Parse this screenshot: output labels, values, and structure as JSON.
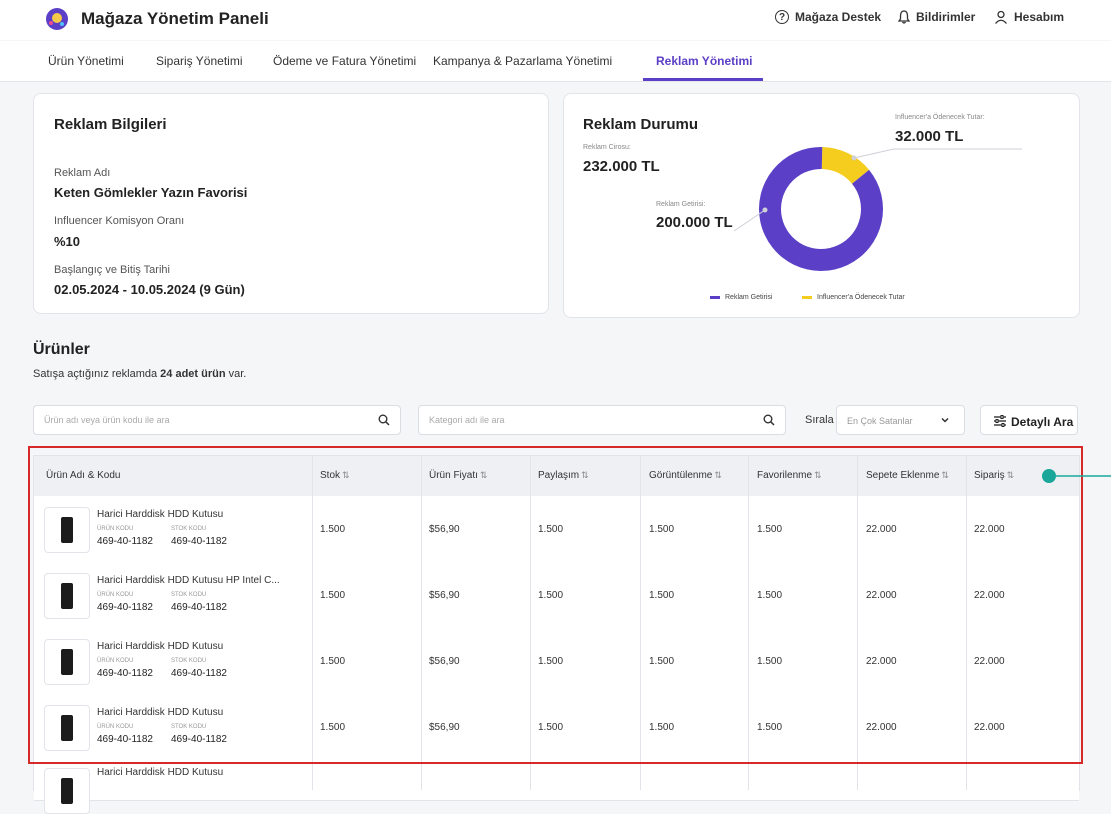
{
  "header": {
    "title": "Mağaza Yönetim Paneli",
    "support": "Mağaza Destek",
    "notifications": "Bildirimler",
    "account": "Hesabım"
  },
  "nav": {
    "tabs": [
      "Ürün Yönetimi",
      "Sipariş Yönetimi",
      "Ödeme ve Fatura Yönetimi",
      "Kampanya & Pazarlama Yönetimi",
      "Reklam Yönetimi"
    ],
    "active": "Reklam Yönetimi"
  },
  "ad_info": {
    "title": "Reklam Bilgileri",
    "name_label": "Reklam Adı",
    "name": "Keten Gömlekler Yazın Favorisi",
    "commission_label": "Influencer Komisyon Oranı",
    "commission": "%10",
    "date_label": "Başlangıç ve Bitiş Tarihi",
    "date": "02.05.2024 - 10.05.2024 (9 Gün)"
  },
  "ad_status": {
    "title": "Reklam Durumu",
    "revenue_label": "Reklam Cirosu:",
    "revenue": "232.000 TL",
    "return_label": "Reklam Getirisi:",
    "return": "200.000 TL",
    "influencer_label": "Influencer'a Ödenecek Tutar:",
    "influencer": "32.000 TL",
    "legend": [
      "Reklam Getirisi",
      "Influencer'a Ödenecek Tutar"
    ],
    "colors": {
      "return": "#5b3fc6",
      "influencer": "#f5cd1f"
    }
  },
  "chart_data": {
    "type": "pie",
    "categories": [
      "Reklam Getirisi",
      "Influencer'a Ödenecek Tutar"
    ],
    "values": [
      200000,
      32000
    ]
  },
  "products": {
    "title": "Ürünler",
    "subtitle_pre": "Satışa açtığınız reklamda ",
    "subtitle_bold": "24 adet ürün",
    "subtitle_post": " var.",
    "search_placeholder": "Ürün adı veya ürün kodu ile ara",
    "category_placeholder": "Kategori adı ile ara",
    "sort_label": "Sırala",
    "sort_value": "En Çok Satanlar",
    "detail_button": "Detaylı Ara",
    "columns": [
      "Ürün Adı & Kodu",
      "Stok",
      "Ürün Fiyatı",
      "Paylaşım",
      "Görüntülenme",
      "Favorilenme",
      "Sepete Eklenme",
      "Sipariş"
    ],
    "code_label": "ÜRÜN KODU",
    "stock_code_label": "STOK KODU",
    "rows": [
      {
        "name": "Harici Harddisk HDD Kutusu",
        "code": "469-40-1182",
        "stock_code": "469-40-1182",
        "stock": "1.500",
        "price": "$56,90",
        "share": "1.500",
        "views": "1.500",
        "favorites": "1.500",
        "cart": "22.000",
        "orders": "22.000"
      },
      {
        "name": "Harici Harddisk HDD Kutusu HP Intel C...",
        "code": "469-40-1182",
        "stock_code": "469-40-1182",
        "stock": "1.500",
        "price": "$56,90",
        "share": "1.500",
        "views": "1.500",
        "favorites": "1.500",
        "cart": "22.000",
        "orders": "22.000"
      },
      {
        "name": "Harici Harddisk HDD Kutusu",
        "code": "469-40-1182",
        "stock_code": "469-40-1182",
        "stock": "1.500",
        "price": "$56,90",
        "share": "1.500",
        "views": "1.500",
        "favorites": "1.500",
        "cart": "22.000",
        "orders": "22.000"
      },
      {
        "name": "Harici Harddisk HDD Kutusu",
        "code": "469-40-1182",
        "stock_code": "469-40-1182",
        "stock": "1.500",
        "price": "$56,90",
        "share": "1.500",
        "views": "1.500",
        "favorites": "1.500",
        "cart": "22.000",
        "orders": "22.000"
      },
      {
        "name": "Harici Harddisk HDD Kutusu"
      }
    ]
  }
}
